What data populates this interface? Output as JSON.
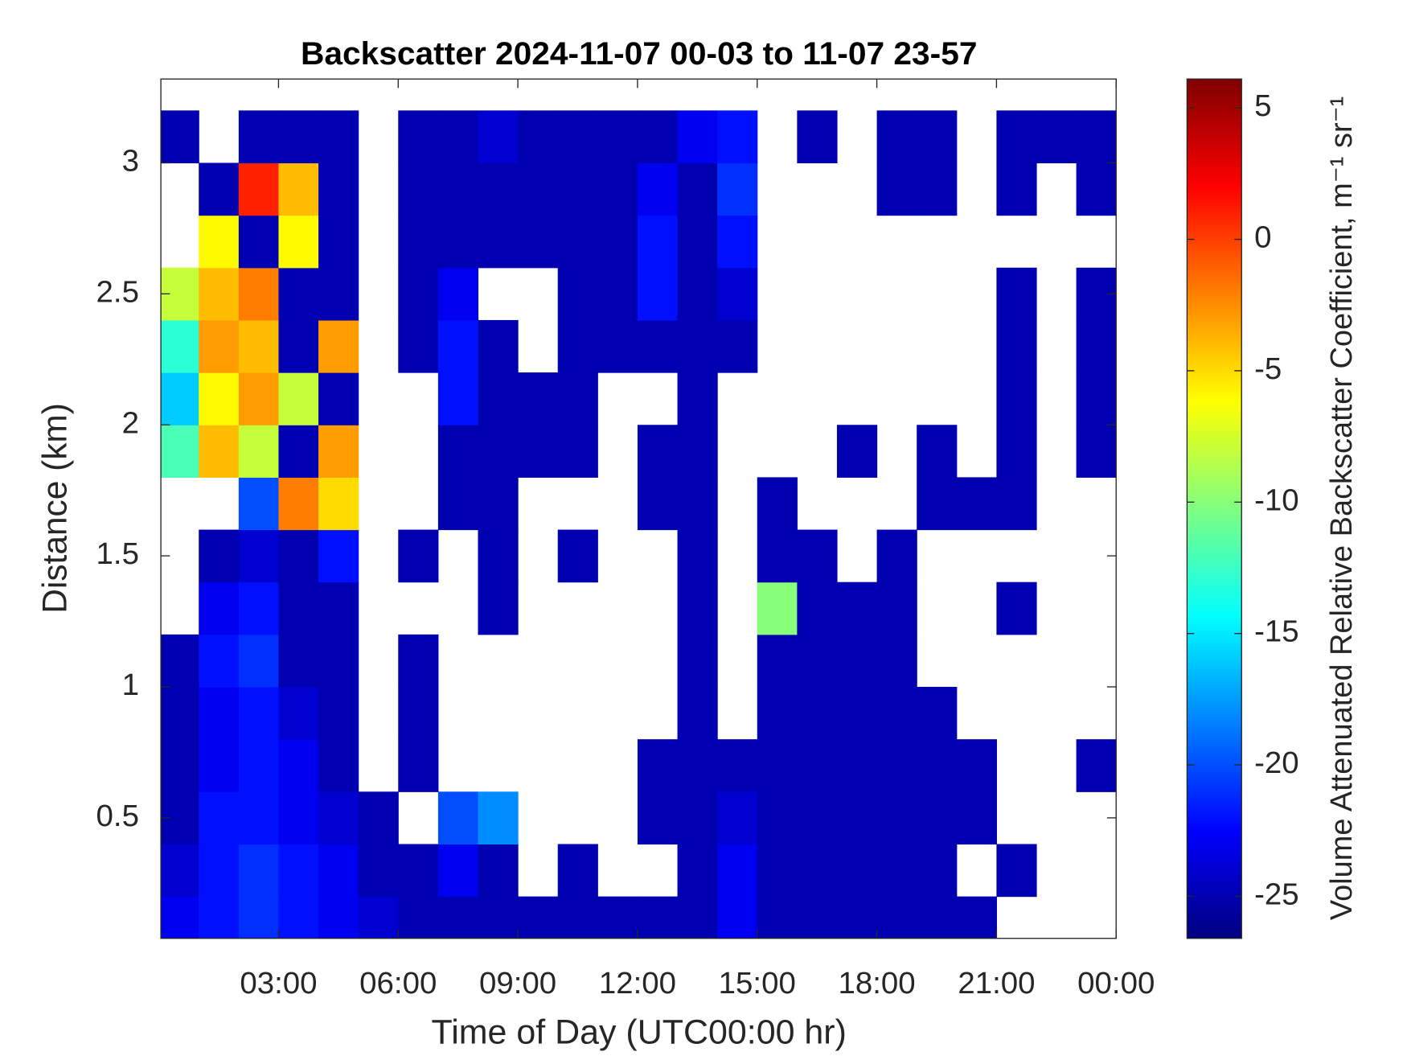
{
  "chart_data": {
    "type": "heatmap",
    "title": "Backscatter 2024-11-07 00-03 to 11-07 23-57",
    "x_label": "Time of Day (UTC00:00 hr)",
    "y_label": "Distance (km)",
    "colorbar_label": "Volume Attenuated Relative Backscatter Coefficient, m⁻¹ sr⁻¹",
    "colormap": "jet",
    "xlim": [
      0.05,
      24
    ],
    "ylim": [
      0.04,
      3.32
    ],
    "clim": [
      -26.6,
      6.1
    ],
    "xticks": [
      {
        "value": 3,
        "label": "03:00"
      },
      {
        "value": 6,
        "label": "06:00"
      },
      {
        "value": 9,
        "label": "09:00"
      },
      {
        "value": 12,
        "label": "12:00"
      },
      {
        "value": 15,
        "label": "15:00"
      },
      {
        "value": 18,
        "label": "18:00"
      },
      {
        "value": 21,
        "label": "21:00"
      },
      {
        "value": 24,
        "label": "00:00"
      }
    ],
    "yticks": [
      0.5,
      1,
      1.5,
      2,
      2.5,
      3
    ],
    "cticks": [
      -25,
      -20,
      -15,
      -10,
      -5,
      0,
      5
    ],
    "x": [
      0.5,
      1.5,
      2.5,
      3.5,
      4.5,
      5.5,
      6.5,
      7.5,
      8.5,
      9.5,
      10.5,
      11.5,
      12.5,
      13.5,
      14.5,
      15.5,
      16.5,
      17.5,
      18.5,
      19.5,
      20.5,
      21.5,
      22.5,
      23.5
    ],
    "y": [
      0.1,
      0.3,
      0.5,
      0.7,
      0.9,
      1.1,
      1.3,
      1.5,
      1.7,
      1.9,
      2.1,
      2.3,
      2.5,
      2.7,
      2.9,
      3.1
    ],
    "values": [
      [
        -23,
        -22,
        -21,
        -22,
        -23,
        -24,
        -25,
        -25,
        -25,
        -25,
        -25,
        -25,
        -25,
        -25,
        -23,
        -25,
        -25,
        -25,
        -25,
        -25,
        -25,
        null,
        null,
        null
      ],
      [
        -24,
        -22,
        -21,
        -22,
        -23,
        -25,
        -25,
        -23,
        -25,
        null,
        -25,
        null,
        null,
        -25,
        -23,
        -25,
        -25,
        -25,
        -25,
        -25,
        null,
        -25,
        null,
        null
      ],
      [
        -25,
        -22,
        -22,
        -23,
        -24,
        -25,
        null,
        -20,
        -18,
        null,
        null,
        null,
        -25,
        -25,
        -24,
        -25,
        -25,
        -25,
        -25,
        -25,
        -25,
        null,
        null,
        null
      ],
      [
        -25,
        -23,
        -22,
        -23,
        -25,
        null,
        -25,
        null,
        null,
        null,
        null,
        null,
        -25,
        -25,
        -25,
        -25,
        -25,
        -25,
        -25,
        -25,
        -25,
        null,
        null,
        -25
      ],
      [
        -25,
        -23,
        -22,
        -24,
        -25,
        null,
        -25,
        null,
        null,
        null,
        null,
        null,
        null,
        -25,
        null,
        -25,
        -25,
        -25,
        -25,
        -25,
        null,
        null,
        null,
        null
      ],
      [
        -25,
        -22,
        -21,
        -25,
        -25,
        null,
        -25,
        null,
        null,
        null,
        null,
        null,
        null,
        -25,
        null,
        -25,
        -25,
        -25,
        -25,
        null,
        null,
        null,
        null,
        null
      ],
      [
        null,
        -23,
        -22,
        -25,
        -25,
        null,
        null,
        null,
        -25,
        null,
        null,
        null,
        null,
        -25,
        null,
        -10,
        -25,
        -25,
        -25,
        null,
        null,
        -25,
        null,
        null
      ],
      [
        null,
        -25,
        -24,
        -25,
        -22,
        null,
        -25,
        null,
        -25,
        null,
        -25,
        null,
        null,
        -25,
        null,
        -25,
        -25,
        null,
        -25,
        null,
        null,
        null,
        null,
        null
      ],
      [
        null,
        null,
        -20,
        -2,
        -5,
        null,
        null,
        -25,
        -25,
        null,
        null,
        null,
        -25,
        -25,
        null,
        -25,
        null,
        null,
        null,
        -25,
        -25,
        -25,
        null,
        null
      ],
      [
        -12,
        -4,
        -8,
        -25,
        -3,
        null,
        null,
        -25,
        -25,
        -25,
        -25,
        null,
        -25,
        -25,
        null,
        null,
        null,
        -25,
        null,
        -25,
        null,
        -25,
        null,
        -25
      ],
      [
        -16,
        -6,
        -3,
        -8,
        -25,
        null,
        null,
        -22,
        -25,
        -25,
        -25,
        null,
        null,
        -25,
        null,
        null,
        null,
        null,
        null,
        null,
        null,
        -25,
        null,
        -25
      ],
      [
        -13,
        -3,
        -4,
        -25,
        -3,
        null,
        -25,
        -22,
        -25,
        null,
        -25,
        -25,
        -25,
        -25,
        -25,
        null,
        null,
        null,
        null,
        null,
        null,
        -25,
        null,
        -25
      ],
      [
        -8,
        -4,
        -2,
        -25,
        -25,
        null,
        -25,
        -23,
        null,
        null,
        -25,
        -25,
        -22,
        -25,
        -24,
        null,
        null,
        null,
        null,
        null,
        null,
        -25,
        null,
        -25
      ],
      [
        null,
        -6,
        -25,
        -6,
        -25,
        null,
        -25,
        -25,
        -25,
        -25,
        -25,
        -25,
        -22,
        -25,
        -22,
        null,
        null,
        null,
        null,
        null,
        null,
        null,
        null,
        null
      ],
      [
        null,
        -25,
        1,
        -4,
        -25,
        null,
        -25,
        -25,
        -25,
        -25,
        -25,
        -25,
        -23,
        -25,
        -21,
        null,
        null,
        null,
        -25,
        -25,
        null,
        -25,
        null,
        -25
      ],
      [
        -25,
        null,
        -25,
        -25,
        -25,
        null,
        -25,
        -25,
        -24,
        -25,
        -25,
        -25,
        -25,
        -23,
        -22,
        null,
        -25,
        null,
        -25,
        -25,
        null,
        -25,
        -25,
        -25
      ]
    ]
  }
}
